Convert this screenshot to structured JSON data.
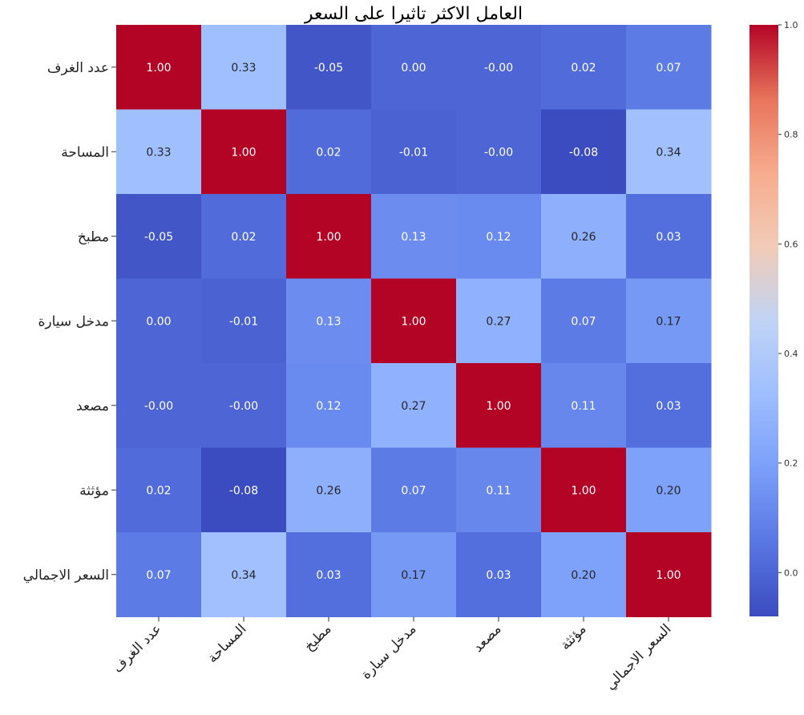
{
  "chart_data": {
    "type": "heatmap",
    "title": "العامل الاكثر تاثيرا على السعر",
    "labels": [
      "عدد الغرف",
      "المساحة",
      "مطبخ",
      "مدخل سيارة",
      "مصعد",
      "مؤثثة",
      "السعر الاجمالي"
    ],
    "matrix": [
      [
        1.0,
        0.33,
        -0.05,
        0.0,
        -0.0,
        0.02,
        0.07
      ],
      [
        0.33,
        1.0,
        0.02,
        -0.01,
        -0.0,
        -0.08,
        0.34
      ],
      [
        -0.05,
        0.02,
        1.0,
        0.13,
        0.12,
        0.26,
        0.03
      ],
      [
        0.0,
        -0.01,
        0.13,
        1.0,
        0.27,
        0.07,
        0.17
      ],
      [
        -0.0,
        -0.0,
        0.12,
        0.27,
        1.0,
        0.11,
        0.03
      ],
      [
        0.02,
        -0.08,
        0.26,
        0.07,
        0.11,
        1.0,
        0.2
      ],
      [
        0.07,
        0.34,
        0.03,
        0.17,
        0.03,
        0.2,
        1.0
      ]
    ],
    "cell_text": [
      [
        "1.00",
        "0.33",
        "-0.05",
        "0.00",
        "-0.00",
        "0.02",
        "0.07"
      ],
      [
        "0.33",
        "1.00",
        "0.02",
        "-0.01",
        "-0.00",
        "-0.08",
        "0.34"
      ],
      [
        "-0.05",
        "0.02",
        "1.00",
        "0.13",
        "0.12",
        "0.26",
        "0.03"
      ],
      [
        "0.00",
        "-0.01",
        "0.13",
        "1.00",
        "0.27",
        "0.07",
        "0.17"
      ],
      [
        "-0.00",
        "-0.00",
        "0.12",
        "0.27",
        "1.00",
        "0.11",
        "0.03"
      ],
      [
        "0.02",
        "-0.08",
        "0.26",
        "0.07",
        "0.11",
        "1.00",
        "0.20"
      ],
      [
        "0.07",
        "0.34",
        "0.03",
        "0.17",
        "0.03",
        "0.20",
        "1.00"
      ]
    ],
    "colormap": "coolwarm",
    "vmin": -0.08,
    "vmax": 1.0,
    "colorbar_ticks": [
      0.0,
      0.2,
      0.4,
      0.6,
      0.8,
      1.0
    ],
    "colorbar_tick_labels": [
      "0.0",
      "0.2",
      "0.4",
      "0.6",
      "0.8",
      "1.0"
    ],
    "colorbar_position": "right",
    "grid": false
  }
}
